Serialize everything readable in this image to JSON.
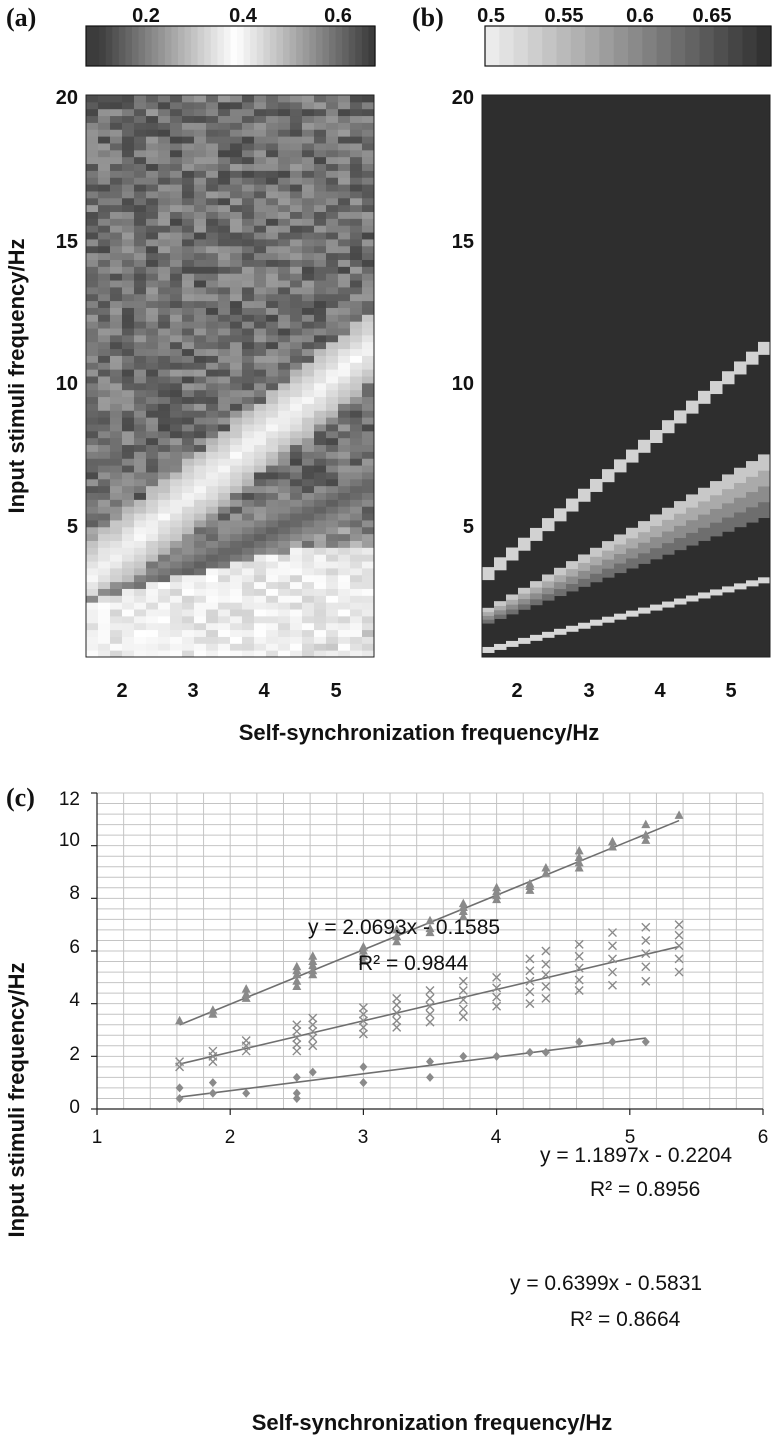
{
  "panels": {
    "a": {
      "label": "(a)"
    },
    "b": {
      "label": "(b)"
    },
    "c": {
      "label": "(c)"
    }
  },
  "colorbar_a": {
    "ticks": [
      "0.2",
      "0.4",
      "0.6"
    ],
    "values": [
      0.2,
      0.4,
      0.6
    ],
    "range": [
      0.1,
      0.68
    ]
  },
  "colorbar_b": {
    "ticks": [
      "0.5",
      "0.55",
      "0.6",
      "0.65"
    ],
    "values": [
      0.5,
      0.55,
      0.6,
      0.65
    ],
    "range": [
      0.49,
      0.68
    ]
  },
  "heatmaps": {
    "x_ticks": [
      "2",
      "3",
      "4",
      "5"
    ],
    "x_tick_values": [
      2,
      3,
      4,
      5
    ],
    "y_ticks": [
      "5",
      "10",
      "15",
      "20"
    ],
    "y_tick_values": [
      5,
      10,
      15,
      20
    ],
    "xlim": [
      1.5,
      5.5
    ],
    "ylim": [
      0.2,
      20
    ],
    "x_title": "Self-synchronization frequency/Hz",
    "y_title": "Input stimuli frequency/Hz"
  },
  "chart_data": [
    {
      "type": "heatmap",
      "panel": "a",
      "xlim": [
        1.5,
        5.5
      ],
      "ylim": [
        0.2,
        20
      ],
      "grid": false,
      "colormap": "gray-white-gray",
      "bands": [
        {
          "slope": 2.07,
          "intercept": -0.16,
          "level": "bright"
        },
        {
          "slope": 1.19,
          "intercept": -0.22,
          "level": "dark"
        },
        {
          "slope": 0.64,
          "intercept": -0.58,
          "level": "bright"
        }
      ]
    },
    {
      "type": "heatmap",
      "panel": "b",
      "xlim": [
        1.5,
        5.5
      ],
      "ylim": [
        0.2,
        20
      ],
      "grid": false,
      "colormap": "gray",
      "bands": [
        {
          "slope": 2.07,
          "intercept": -0.16,
          "level": "light"
        },
        {
          "slope": 1.19,
          "intercept": -0.22,
          "level": "medium"
        },
        {
          "slope": 0.64,
          "intercept": -0.58,
          "level": "light"
        }
      ]
    },
    {
      "type": "scatter",
      "panel": "c",
      "xlabel": "Self-synchronization frequency/Hz",
      "ylabel": "Input stimuli frequency/Hz",
      "xlim": [
        1,
        6
      ],
      "ylim": [
        0,
        12
      ],
      "x_ticks": [
        1,
        2,
        3,
        4,
        5,
        6
      ],
      "y_ticks": [
        0,
        2,
        4,
        6,
        8,
        10,
        12
      ],
      "grid": true,
      "series": [
        {
          "marker": "triangle",
          "x": [
            1.62,
            1.87,
            1.87,
            2.12,
            2.12,
            2.12,
            2.5,
            2.5,
            2.5,
            2.5,
            2.5,
            2.62,
            2.62,
            2.62,
            2.62,
            2.62,
            3.0,
            3.0,
            3.0,
            3.0,
            3.25,
            3.25,
            3.25,
            3.5,
            3.5,
            3.5,
            3.75,
            3.75,
            3.75,
            3.75,
            4.0,
            4.0,
            4.0,
            4.0,
            4.25,
            4.25,
            4.25,
            4.37,
            4.37,
            4.62,
            4.62,
            4.62,
            4.62,
            4.87,
            4.87,
            5.12,
            5.12,
            5.12,
            5.37
          ],
          "y": [
            3.35,
            3.6,
            3.75,
            4.2,
            4.35,
            4.55,
            4.65,
            4.85,
            5.1,
            5.25,
            5.4,
            5.1,
            5.25,
            5.45,
            5.6,
            5.8,
            5.6,
            5.8,
            6.0,
            6.15,
            6.35,
            6.55,
            6.8,
            6.7,
            6.85,
            7.15,
            7.3,
            7.5,
            7.65,
            7.8,
            7.95,
            8.1,
            8.25,
            8.4,
            8.3,
            8.45,
            8.55,
            8.95,
            9.15,
            9.15,
            9.35,
            9.55,
            9.8,
            9.95,
            10.15,
            10.2,
            10.4,
            10.8,
            11.15
          ],
          "fit": {
            "equation": "y = 2.0693x - 0.1585",
            "r2": "R² = 0.9844",
            "slope": 2.0693,
            "intercept": -0.1585,
            "x_range": [
              1.62,
              5.37
            ]
          }
        },
        {
          "marker": "x",
          "x": [
            1.62,
            1.62,
            1.87,
            1.87,
            1.87,
            2.12,
            2.12,
            2.12,
            2.5,
            2.5,
            2.5,
            2.5,
            2.5,
            2.62,
            2.62,
            2.62,
            2.62,
            2.62,
            3.0,
            3.0,
            3.0,
            3.0,
            3.0,
            3.25,
            3.25,
            3.25,
            3.25,
            3.25,
            3.5,
            3.5,
            3.5,
            3.5,
            3.5,
            3.75,
            3.75,
            3.75,
            3.75,
            3.75,
            4.0,
            4.0,
            4.0,
            4.0,
            4.25,
            4.25,
            4.25,
            4.25,
            4.25,
            4.37,
            4.37,
            4.37,
            4.37,
            4.37,
            4.62,
            4.62,
            4.62,
            4.62,
            4.62,
            4.87,
            4.87,
            4.87,
            4.87,
            4.87,
            5.12,
            5.12,
            5.12,
            5.12,
            5.12,
            5.37,
            5.37,
            5.37,
            5.37,
            5.37
          ],
          "y": [
            1.6,
            1.8,
            1.8,
            2.0,
            2.2,
            2.2,
            2.4,
            2.6,
            2.2,
            2.45,
            2.7,
            2.95,
            3.2,
            2.4,
            2.7,
            2.95,
            3.2,
            3.45,
            2.85,
            3.1,
            3.35,
            3.6,
            3.85,
            3.1,
            3.35,
            3.65,
            3.95,
            4.2,
            3.3,
            3.6,
            3.9,
            4.2,
            4.5,
            3.5,
            3.8,
            4.15,
            4.5,
            4.85,
            3.9,
            4.25,
            4.6,
            5.0,
            4.0,
            4.45,
            4.85,
            5.25,
            5.7,
            4.2,
            4.65,
            5.1,
            5.5,
            6.0,
            4.5,
            4.9,
            5.35,
            5.8,
            6.25,
            4.7,
            5.2,
            5.7,
            6.2,
            6.7,
            4.85,
            5.4,
            5.9,
            6.4,
            6.9,
            5.2,
            5.7,
            6.2,
            6.6,
            7.0
          ],
          "fit": {
            "equation": "y = 1.1897x - 0.2204",
            "r2": "R² = 0.8956",
            "slope": 1.1897,
            "intercept": -0.2204,
            "x_range": [
              1.62,
              5.37
            ]
          }
        },
        {
          "marker": "diamond",
          "x": [
            1.62,
            1.62,
            1.87,
            1.87,
            2.12,
            2.5,
            2.5,
            2.5,
            2.62,
            3.0,
            3.0,
            3.5,
            3.5,
            3.75,
            4.0,
            4.25,
            4.37,
            4.62,
            4.87,
            5.12
          ],
          "y": [
            0.4,
            0.8,
            0.6,
            1.0,
            0.6,
            0.4,
            0.6,
            1.2,
            1.4,
            1.0,
            1.6,
            1.2,
            1.8,
            2.0,
            2.0,
            2.15,
            2.15,
            2.55,
            2.55,
            2.55
          ],
          "fit": {
            "equation": "y = 0.6399x - 0.5831",
            "r2": "R² = 0.8664",
            "slope": 0.6399,
            "intercept": -0.5831,
            "x_range": [
              1.62,
              5.12
            ]
          }
        }
      ]
    }
  ],
  "colors": {
    "bg": "#ffffff",
    "text": "#111111",
    "panel_b_bg": "#2e2e2e",
    "grid": "#c4c4c4",
    "marker": "#8a8a8a",
    "fit": "#6f6f6f"
  }
}
